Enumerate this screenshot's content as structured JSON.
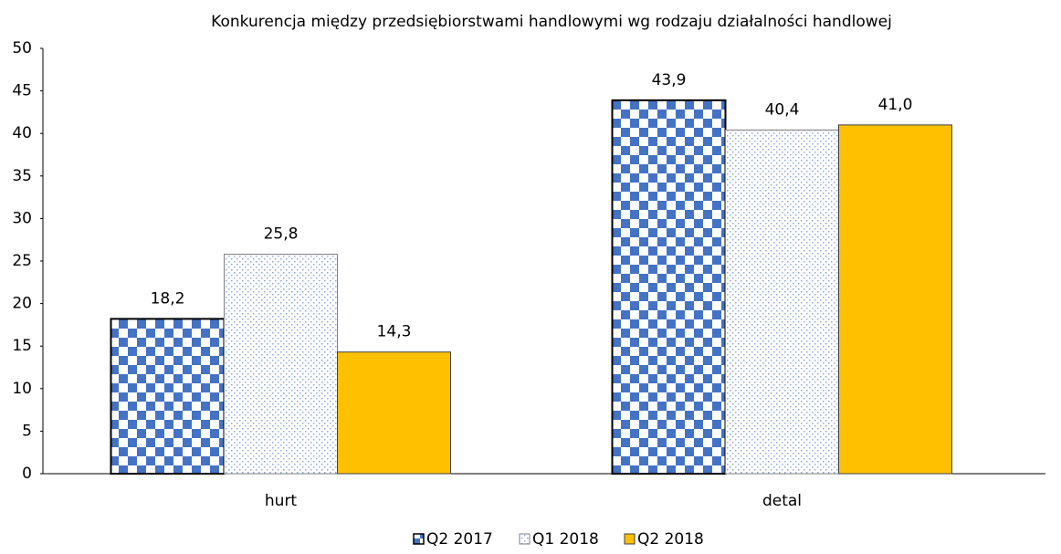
{
  "chart_data": {
    "type": "bar",
    "title": "Konkurencja między przedsiębiorstwami handlowymi wg rodzaju działalności handlowej",
    "categories": [
      "hurt",
      "detal"
    ],
    "series": [
      {
        "name": "Q2 2017",
        "color": "#4472c4",
        "values": [
          18.2,
          43.9
        ],
        "value_labels": [
          "18,2",
          "43,9"
        ]
      },
      {
        "name": "Q1 2018",
        "color": "#8eaadb",
        "values": [
          25.8,
          40.4
        ],
        "value_labels": [
          "25,8",
          "40,4"
        ]
      },
      {
        "name": "Q2 2018",
        "color": "#ffc000",
        "values": [
          14.3,
          41.0
        ],
        "value_labels": [
          "14,3",
          "41,0"
        ]
      }
    ],
    "ylim": [
      0,
      50
    ],
    "yticks": [
      0,
      5,
      10,
      15,
      20,
      25,
      30,
      35,
      40,
      45,
      50
    ],
    "grid": false,
    "legend": "bottom"
  }
}
